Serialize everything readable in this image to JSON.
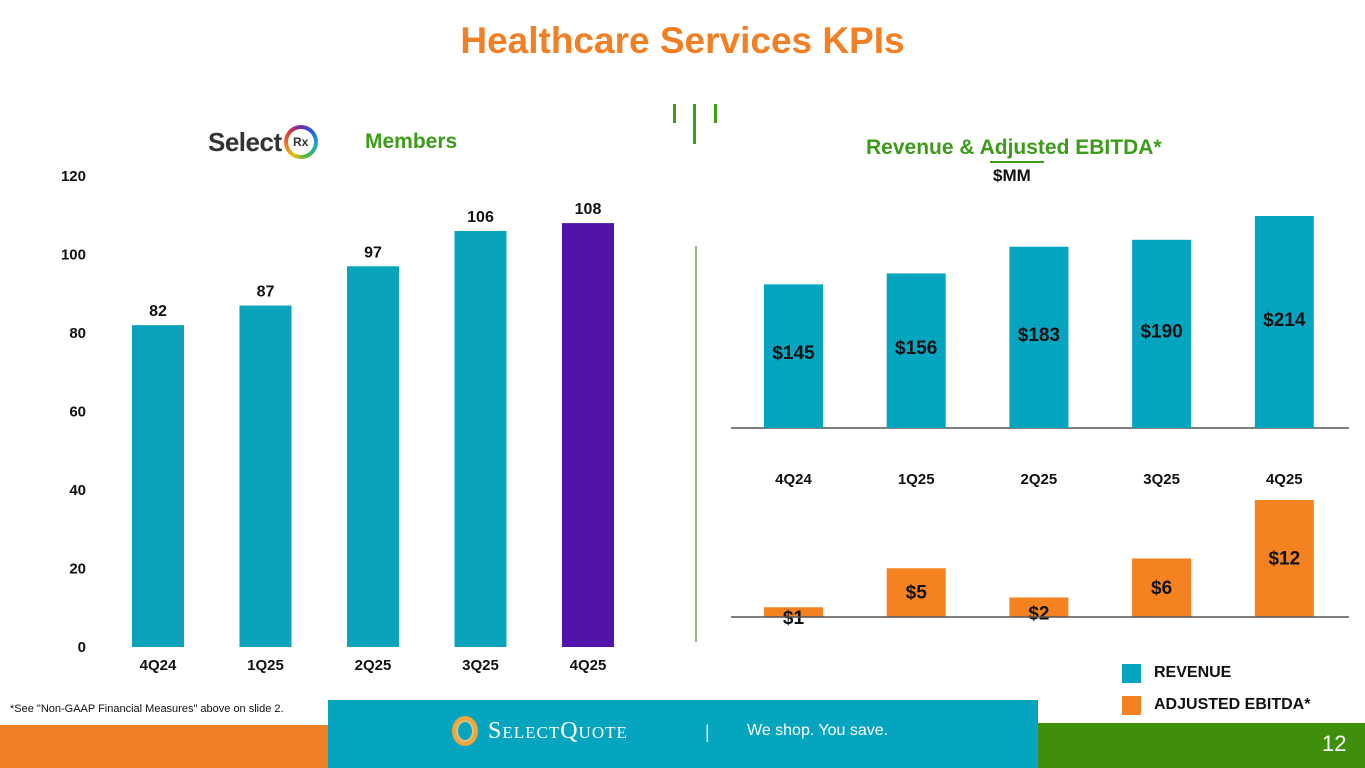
{
  "page": {
    "title": "Healthcare Services KPIs",
    "footnote": "*See \"Non-GAAP Financial Measures\" above on slide 2.",
    "page_number": "12"
  },
  "members_panel": {
    "logo_word": "Select",
    "logo_badge": "Rx",
    "label": "Members"
  },
  "revenue_panel": {
    "title": "Revenue & Adjusted EBITDA*",
    "unit": "$MM"
  },
  "footer": {
    "brand": "SelectQuote",
    "brand_mark": "™",
    "separator": "|",
    "tagline": "We shop. You save."
  },
  "legend": [
    {
      "label": "REVENUE",
      "color": "#06a5bf"
    },
    {
      "label": "ADJUSTED EBITDA*",
      "color": "#f58220"
    }
  ],
  "colors": {
    "title": "#f07f25",
    "accent_green": "#3d9b1a",
    "members_bar": "#0aa3ba",
    "members_highlight": "#5113a8",
    "revenue_bar": "#06a5bf",
    "ebitda_bar": "#f58220"
  },
  "chart_data": [
    {
      "type": "bar",
      "title": "Members",
      "categories": [
        "4Q24",
        "1Q25",
        "2Q25",
        "3Q25",
        "4Q25"
      ],
      "values": [
        82,
        87,
        97,
        106,
        108
      ],
      "labels": [
        "82",
        "87",
        "97",
        "106",
        "108"
      ],
      "highlight_index": 4,
      "xlabel": "",
      "ylabel": "",
      "ylim": [
        0,
        120
      ],
      "yticks": [
        "0",
        "20",
        "40",
        "60",
        "80",
        "100",
        "120"
      ],
      "grid": false,
      "legend": "none"
    },
    {
      "type": "bar",
      "title": "Revenue & Adjusted EBITDA*",
      "subtitle": "$MM",
      "categories": [
        "4Q24",
        "1Q25",
        "2Q25",
        "3Q25",
        "4Q25"
      ],
      "series": [
        {
          "name": "REVENUE",
          "values": [
            145,
            156,
            183,
            190,
            214
          ],
          "labels": [
            "$145",
            "$156",
            "$183",
            "$190",
            "$214"
          ]
        },
        {
          "name": "ADJUSTED EBITDA*",
          "values": [
            1,
            5,
            2,
            6,
            12
          ],
          "labels": [
            "$1",
            "$5",
            "$2",
            "$6",
            "$12"
          ]
        }
      ],
      "grid": false,
      "legend": "bottom-right"
    }
  ]
}
